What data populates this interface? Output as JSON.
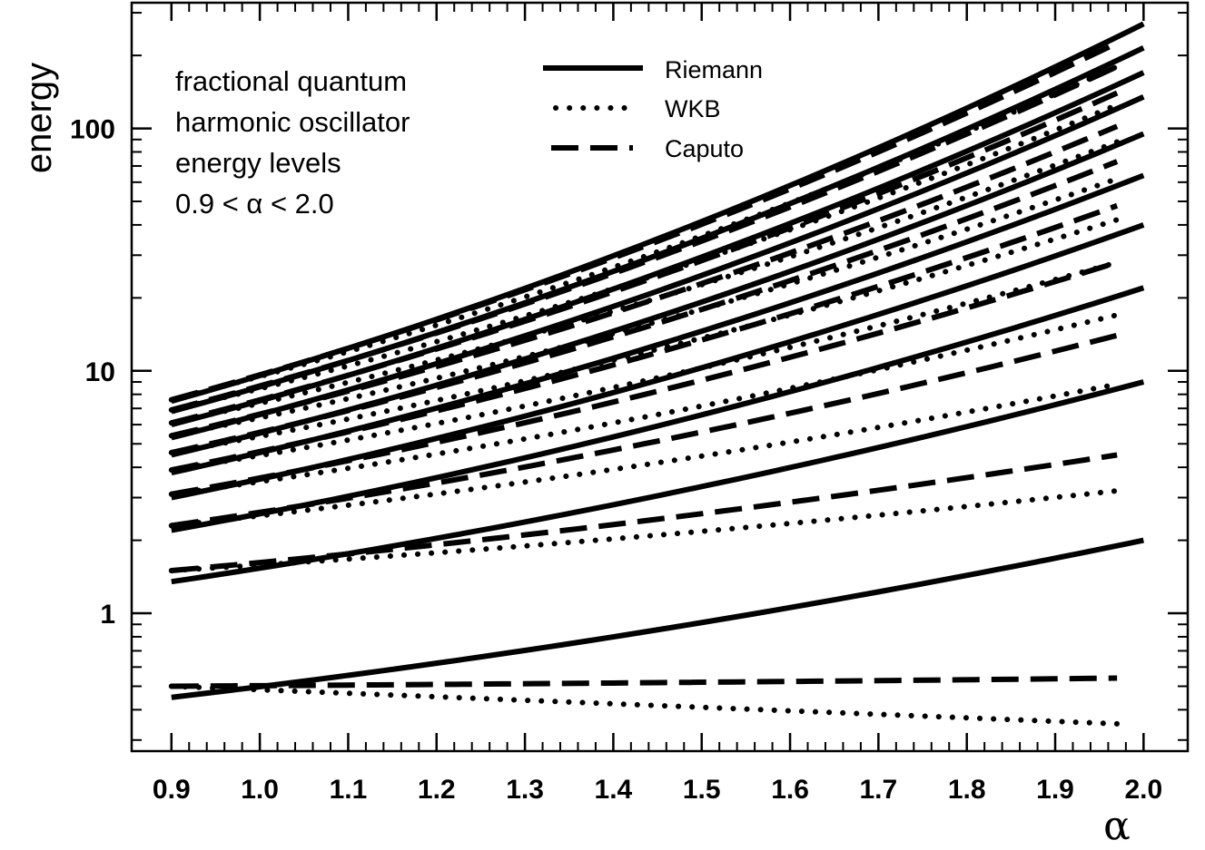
{
  "chart_data": {
    "type": "line",
    "title": "",
    "annotation": [
      "fractional quantum",
      "harmonic oscillator",
      "energy levels",
      "0.9 < α < 2.0"
    ],
    "xlabel": "α",
    "ylabel": "energy",
    "xlim": [
      0.855,
      2.05
    ],
    "ylim": [
      0.27,
      330
    ],
    "yscale": "log",
    "x_ticks": [
      "0.9",
      "1.0",
      "1.1",
      "1.2",
      "1.3",
      "1.4",
      "1.5",
      "1.6",
      "1.7",
      "1.8",
      "1.9",
      "2.0"
    ],
    "y_ticks": [
      "1",
      "10",
      "100"
    ],
    "legend": {
      "position": "top-center",
      "entries": [
        {
          "label": "Riemann",
          "style": "solid"
        },
        {
          "label": "WKB",
          "style": "dotted"
        },
        {
          "label": "Caputo",
          "style": "dashed"
        }
      ]
    },
    "series": [
      {
        "name": "Riemann",
        "style": "solid",
        "x": [
          0.9,
          2.0
        ],
        "levels": [
          {
            "n": 0,
            "values": [
              0.45,
              2.0
            ]
          },
          {
            "n": 1,
            "values": [
              1.35,
              9.0
            ]
          },
          {
            "n": 2,
            "values": [
              2.2,
              22.0
            ]
          },
          {
            "n": 3,
            "values": [
              3.0,
              40.0
            ]
          },
          {
            "n": 4,
            "values": [
              3.8,
              64.0
            ]
          },
          {
            "n": 5,
            "values": [
              4.5,
              95.0
            ]
          },
          {
            "n": 6,
            "values": [
              5.3,
              135.0
            ]
          },
          {
            "n": 7,
            "values": [
              6.0,
              170.0
            ]
          },
          {
            "n": 8,
            "values": [
              6.8,
              215.0
            ]
          },
          {
            "n": 9,
            "values": [
              7.5,
              270.0
            ]
          }
        ]
      },
      {
        "name": "WKB",
        "style": "dotted",
        "x": [
          0.9,
          1.97
        ],
        "levels": [
          {
            "n": 0,
            "values": [
              0.5,
              0.35
            ]
          },
          {
            "n": 1,
            "values": [
              1.5,
              3.2
            ]
          },
          {
            "n": 2,
            "values": [
              2.3,
              8.8
            ]
          },
          {
            "n": 3,
            "values": [
              3.1,
              17.0
            ]
          },
          {
            "n": 4,
            "values": [
              3.9,
              28.0
            ]
          },
          {
            "n": 5,
            "values": [
              4.6,
              42.0
            ]
          },
          {
            "n": 6,
            "values": [
              5.4,
              62.0
            ]
          },
          {
            "n": 7,
            "values": [
              6.1,
              88.0
            ]
          },
          {
            "n": 8,
            "values": [
              6.9,
              125.0
            ]
          },
          {
            "n": 9,
            "values": [
              7.6,
              180.0
            ]
          }
        ]
      },
      {
        "name": "Caputo",
        "style": "dashed",
        "x": [
          0.9,
          1.97
        ],
        "levels": [
          {
            "n": 0,
            "values": [
              0.5,
              0.54
            ]
          },
          {
            "n": 1,
            "values": [
              1.5,
              4.5
            ]
          },
          {
            "n": 2,
            "values": [
              2.3,
              14.0
            ]
          },
          {
            "n": 3,
            "values": [
              3.1,
              28.0
            ]
          },
          {
            "n": 4,
            "values": [
              3.9,
              48.0
            ]
          },
          {
            "n": 5,
            "values": [
              4.6,
              73.0
            ]
          },
          {
            "n": 6,
            "values": [
              5.4,
              102.0
            ]
          },
          {
            "n": 7,
            "values": [
              6.1,
              140.0
            ]
          },
          {
            "n": 8,
            "values": [
              6.9,
              180.0
            ]
          },
          {
            "n": 9,
            "values": [
              7.6,
              225.0
            ]
          }
        ]
      }
    ]
  }
}
